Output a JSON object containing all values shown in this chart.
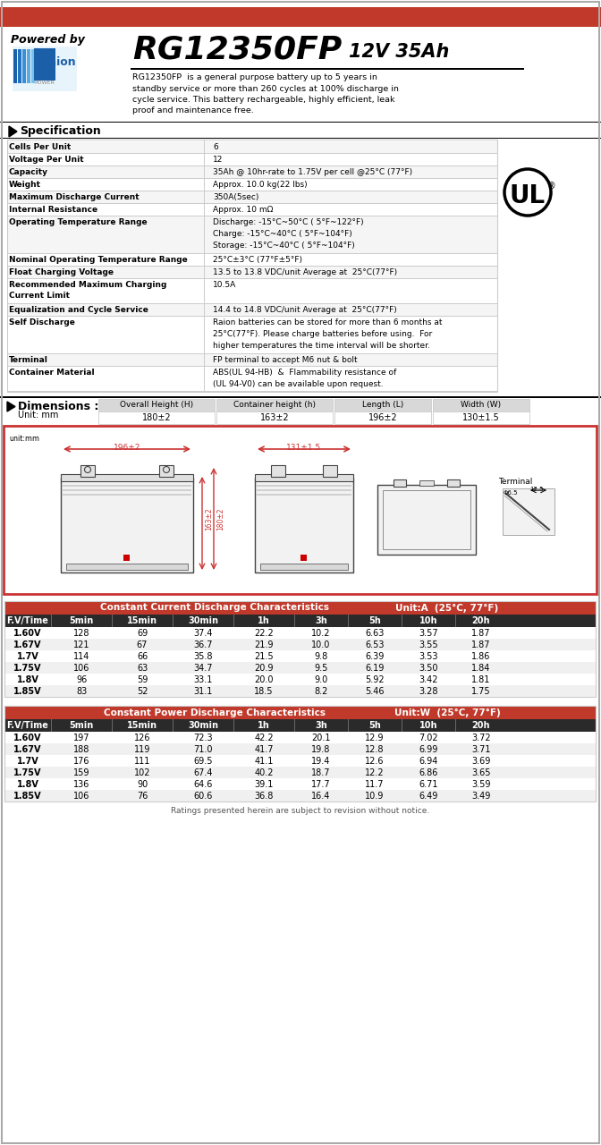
{
  "title_model": "RG12350FP",
  "title_spec": "12V 35Ah",
  "powered_by": "Powered by",
  "description": "RG12350FP  is a general purpose battery up to 5 years in\nstandby service or more than 260 cycles at 100% discharge in\ncycle service. This battery rechargeable, highly efficient, leak\nproof and maintenance free.",
  "section_spec": "Specification",
  "spec_rows": [
    [
      "Cells Per Unit",
      "6"
    ],
    [
      "Voltage Per Unit",
      "12"
    ],
    [
      "Capacity",
      "35Ah @ 10hr-rate to 1.75V per cell @25°C (77°F)"
    ],
    [
      "Weight",
      "Approx. 10.0 kg(22 lbs)"
    ],
    [
      "Maximum Discharge Current",
      "350A(5sec)"
    ],
    [
      "Internal Resistance",
      "Approx. 10 mΩ"
    ],
    [
      "Operating Temperature Range",
      "Discharge: -15°C~50°C ( 5°F~122°F)\nCharge: -15°C~40°C ( 5°F~104°F)\nStorage: -15°C~40°C ( 5°F~104°F)"
    ],
    [
      "Nominal Operating Temperature Range",
      "25°C±3°C (77°F±5°F)"
    ],
    [
      "Float Charging Voltage",
      "13.5 to 13.8 VDC/unit Average at  25°C(77°F)"
    ],
    [
      "Recommended Maximum Charging\nCurrent Limit",
      "10.5A"
    ],
    [
      "Equalization and Cycle Service",
      "14.4 to 14.8 VDC/unit Average at  25°C(77°F)"
    ],
    [
      "Self Discharge",
      "Raion batteries can be stored for more than 6 months at\n25°C(77°F). Please charge batteries before using.  For\nhigher temperatures the time interval will be shorter."
    ],
    [
      "Terminal",
      "FP terminal to accept M6 nut & bolt"
    ],
    [
      "Container Material",
      "ABS(UL 94-HB)  &  Flammability resistance of\n(UL 94-V0) can be available upon request."
    ]
  ],
  "section_dim": "Dimensions :",
  "dim_unit": "Unit: mm",
  "dim_headers": [
    "Overall Height (H)",
    "Container height (h)",
    "Length (L)",
    "Width (W)"
  ],
  "dim_values": [
    "180±2",
    "163±2",
    "196±2",
    "130±1.5"
  ],
  "cc_title": "Constant Current Discharge Characteristics",
  "cc_unit": "Unit:A  (25°C, 77°F)",
  "cc_headers": [
    "F.V/Time",
    "5min",
    "15min",
    "30min",
    "1h",
    "3h",
    "5h",
    "10h",
    "20h"
  ],
  "cc_data": [
    [
      "1.60V",
      "128",
      "69",
      "37.4",
      "22.2",
      "10.2",
      "6.63",
      "3.57",
      "1.87"
    ],
    [
      "1.67V",
      "121",
      "67",
      "36.7",
      "21.9",
      "10.0",
      "6.53",
      "3.55",
      "1.87"
    ],
    [
      "1.7V",
      "114",
      "66",
      "35.8",
      "21.5",
      "9.8",
      "6.39",
      "3.53",
      "1.86"
    ],
    [
      "1.75V",
      "106",
      "63",
      "34.7",
      "20.9",
      "9.5",
      "6.19",
      "3.50",
      "1.84"
    ],
    [
      "1.8V",
      "96",
      "59",
      "33.1",
      "20.0",
      "9.0",
      "5.92",
      "3.42",
      "1.81"
    ],
    [
      "1.85V",
      "83",
      "52",
      "31.1",
      "18.5",
      "8.2",
      "5.46",
      "3.28",
      "1.75"
    ]
  ],
  "cp_title": "Constant Power Discharge Characteristics",
  "cp_unit": "Unit:W  (25°C, 77°F)",
  "cp_headers": [
    "F.V/Time",
    "5min",
    "15min",
    "30min",
    "1h",
    "3h",
    "5h",
    "10h",
    "20h"
  ],
  "cp_data": [
    [
      "1.60V",
      "197",
      "126",
      "72.3",
      "42.2",
      "20.1",
      "12.9",
      "7.02",
      "3.72"
    ],
    [
      "1.67V",
      "188",
      "119",
      "71.0",
      "41.7",
      "19.8",
      "12.8",
      "6.99",
      "3.71"
    ],
    [
      "1.7V",
      "176",
      "111",
      "69.5",
      "41.1",
      "19.4",
      "12.6",
      "6.94",
      "3.69"
    ],
    [
      "1.75V",
      "159",
      "102",
      "67.4",
      "40.2",
      "18.7",
      "12.2",
      "6.86",
      "3.65"
    ],
    [
      "1.8V",
      "136",
      "90",
      "64.6",
      "39.1",
      "17.7",
      "11.7",
      "6.71",
      "3.59"
    ],
    [
      "1.85V",
      "106",
      "76",
      "60.6",
      "36.8",
      "16.4",
      "10.9",
      "6.49",
      "3.49"
    ]
  ],
  "footer": "Ratings presented herein are subject to revision without notice.",
  "red_bar_color": "#c0392b",
  "table_header_bg": "#c0392b",
  "dim_header_bg": "#e0e0e0",
  "white": "#ffffff",
  "black": "#000000",
  "light_gray": "#f0f0f0",
  "medium_gray": "#cccccc",
  "dark_gray": "#555555",
  "row_dark_bg": "#e8e8e8"
}
